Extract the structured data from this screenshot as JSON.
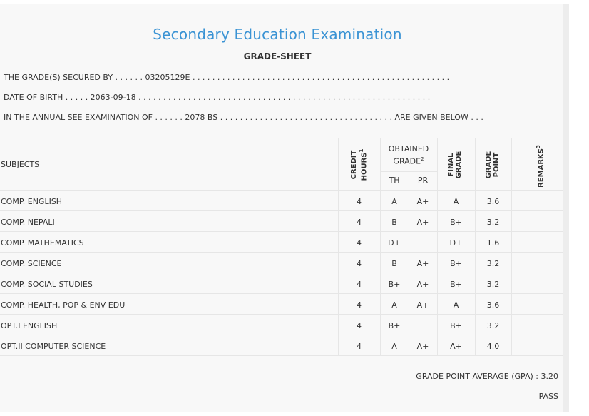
{
  "title": "Secondary Education Examination",
  "subtitle": "GRADE-SHEET",
  "info": {
    "line1": "THE GRADE(S) SECURED BY . . . . . . 03205129E . . . . . . . . . . . . . . . . . . . . . . . . . . . . . . . . . . . . . . . . . . . . . . . . . . . .",
    "line2": "DATE OF BIRTH . . . . . 2063-09-18 . . . . . . . . . . . . . . . . . . . . . . . . . . . . . . . . . . . . . . . . . . . . . . . . . . . . . . . . . . .",
    "line3": "IN THE ANNUAL SEE EXAMINATION OF . . . . . . 2078 BS . . . . . . . . . . . . . . . . . . . . . . . . . . . . . . . . . . . ARE GIVEN BELOW . . ."
  },
  "table": {
    "headers": {
      "subjects": "SUBJECTS",
      "credit_line1": "CREDIT",
      "credit_line2": "HOURS",
      "credit_sup": "1",
      "obtained_line1": "OBTAINED",
      "obtained_line2": "GRADE",
      "obtained_sup": "2",
      "th": "TH",
      "pr": "PR",
      "final_line1": "FINAL",
      "final_line2": "GRADE",
      "point_line1": "GRADE",
      "point_line2": "POINT",
      "remarks": "REMARKS",
      "remarks_sup": "3"
    },
    "rows": [
      {
        "subject": "COMP. ENGLISH",
        "credit": "4",
        "th": "A",
        "pr": "A+",
        "final": "A",
        "point": "3.6",
        "remarks": ""
      },
      {
        "subject": "COMP. NEPALI",
        "credit": "4",
        "th": "B",
        "pr": "A+",
        "final": "B+",
        "point": "3.2",
        "remarks": ""
      },
      {
        "subject": "COMP. MATHEMATICS",
        "credit": "4",
        "th": "D+",
        "pr": "",
        "final": "D+",
        "point": "1.6",
        "remarks": ""
      },
      {
        "subject": "COMP. SCIENCE",
        "credit": "4",
        "th": "B",
        "pr": "A+",
        "final": "B+",
        "point": "3.2",
        "remarks": ""
      },
      {
        "subject": "COMP. SOCIAL STUDIES",
        "credit": "4",
        "th": "B+",
        "pr": "A+",
        "final": "B+",
        "point": "3.2",
        "remarks": ""
      },
      {
        "subject": "COMP. HEALTH, POP & ENV EDU",
        "credit": "4",
        "th": "A",
        "pr": "A+",
        "final": "A",
        "point": "3.6",
        "remarks": ""
      },
      {
        "subject": "OPT.I ENGLISH",
        "credit": "4",
        "th": "B+",
        "pr": "",
        "final": "B+",
        "point": "3.2",
        "remarks": ""
      },
      {
        "subject": "OPT.II COMPUTER SCIENCE",
        "credit": "4",
        "th": "A",
        "pr": "A+",
        "final": "A+",
        "point": "4.0",
        "remarks": ""
      }
    ]
  },
  "summary": {
    "gpa": "GRADE POINT AVERAGE (GPA) : 3.20",
    "result": "PASS"
  },
  "colors": {
    "title": "#3a93d4",
    "background": "#f8f8f8",
    "grid": "#e6e6e6",
    "text": "#333333"
  }
}
